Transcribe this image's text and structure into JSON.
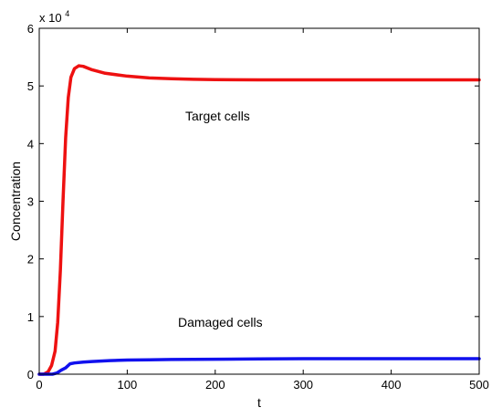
{
  "chart_data": {
    "type": "line",
    "xlabel": "t",
    "ylabel": "Concentration",
    "xlim": [
      0,
      500
    ],
    "ylim": [
      0,
      60000
    ],
    "x_ticks": [
      0,
      100,
      200,
      300,
      400,
      500
    ],
    "y_ticks": [
      0,
      1,
      2,
      3,
      4,
      5,
      6
    ],
    "y_multiplier": {
      "base": "x 10",
      "exponent": "4"
    },
    "grid": false,
    "legend": "none",
    "annotations": [
      {
        "text": "Target cells",
        "series": "Target cells"
      },
      {
        "text": "Damaged cells",
        "series": "Damaged cells"
      }
    ],
    "series": [
      {
        "name": "Target cells",
        "color": "#ee1111",
        "x": [
          0,
          5,
          10,
          14,
          18,
          21,
          24,
          27,
          30,
          33,
          36,
          40,
          45,
          50,
          60,
          75,
          100,
          125,
          150,
          175,
          200,
          250,
          300,
          350,
          400,
          450,
          500
        ],
        "y": [
          0,
          0,
          400,
          1500,
          4000,
          9000,
          18000,
          30000,
          41000,
          48000,
          51500,
          53000,
          53500,
          53400,
          52800,
          52200,
          51700,
          51400,
          51250,
          51150,
          51100,
          51050,
          51050,
          51050,
          51050,
          51050,
          51050
        ]
      },
      {
        "name": "Damaged cells",
        "color": "#1111ee",
        "x": [
          0,
          10,
          15,
          20,
          25,
          30,
          35,
          40,
          50,
          60,
          80,
          100,
          125,
          150,
          200,
          250,
          300,
          350,
          400,
          450,
          500
        ],
        "y": [
          0,
          0,
          0,
          200,
          700,
          1100,
          1800,
          1950,
          2100,
          2200,
          2350,
          2450,
          2500,
          2550,
          2600,
          2650,
          2700,
          2700,
          2700,
          2700,
          2700
        ]
      }
    ]
  }
}
